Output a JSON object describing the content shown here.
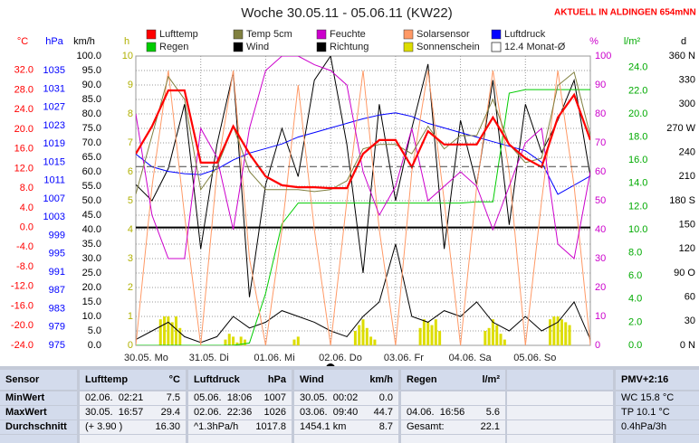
{
  "chart_data": {
    "type": "line",
    "title": "Woche 30.05.11 - 05.06.11 (KW22)",
    "subtitle": "AKTUELL IN ALDINGEN 654mNN",
    "xlim": [
      0,
      7
    ],
    "xticks": [
      {
        "value": 0,
        "label": "30.05. Mo"
      },
      {
        "value": 1,
        "label": "31.05. Di"
      },
      {
        "value": 2,
        "label": "01.06. Mi"
      },
      {
        "value": 3,
        "label": "02.06. Do"
      },
      {
        "value": 4,
        "label": "03.06. Fr"
      },
      {
        "value": 5,
        "label": "04.06. Sa"
      },
      {
        "value": 6,
        "label": "05.06. So"
      }
    ],
    "grid": true,
    "axes": {
      "temp": {
        "label": "°C",
        "color": "#ff0000",
        "lim": [
          -24,
          34.9
        ],
        "ticks": [
          {
            "value": 32,
            "label": "32.0"
          },
          {
            "value": 28,
            "label": "28.0"
          },
          {
            "value": 24,
            "label": "24.0"
          },
          {
            "value": 20,
            "label": "20.0"
          },
          {
            "value": 16,
            "label": "16.0"
          },
          {
            "value": 12,
            "label": "12.0"
          },
          {
            "value": 8,
            "label": "8.0"
          },
          {
            "value": 4,
            "label": "4.0"
          },
          {
            "value": 0,
            "label": "0.0"
          },
          {
            "value": -4,
            "label": "-4.0"
          },
          {
            "value": -8,
            "label": "-8.0"
          },
          {
            "value": -12,
            "label": "-12.0"
          },
          {
            "value": -16,
            "label": "-16.0"
          },
          {
            "value": -20,
            "label": "-20.0"
          },
          {
            "value": -24,
            "label": "-24.0"
          }
        ]
      },
      "pressure": {
        "label": "hPa",
        "color": "#0000ff",
        "lim": [
          975,
          1038.2
        ],
        "ticks": [
          1035,
          1031,
          1027,
          1023,
          1019,
          1015,
          1011,
          1007,
          1003,
          999,
          995,
          991,
          987,
          983,
          979,
          975
        ]
      },
      "wind": {
        "label": "km/h",
        "color": "#000000",
        "lim": [
          0,
          100
        ],
        "ticks": [
          {
            "value": 100,
            "label": "100.0"
          },
          {
            "value": 95,
            "label": "95.0"
          },
          {
            "value": 90,
            "label": "90.0"
          },
          {
            "value": 85,
            "label": "85.0"
          },
          {
            "value": 80,
            "label": "80.0"
          },
          {
            "value": 75,
            "label": "75.0"
          },
          {
            "value": 70,
            "label": "70.0"
          },
          {
            "value": 65,
            "label": "65.0"
          },
          {
            "value": 60,
            "label": "60.0"
          },
          {
            "value": 55,
            "label": "55.0"
          },
          {
            "value": 50,
            "label": "50.0"
          },
          {
            "value": 45,
            "label": "45.0"
          },
          {
            "value": 40,
            "label": "40.0"
          },
          {
            "value": 35,
            "label": "35.0"
          },
          {
            "value": 30,
            "label": "30.0"
          },
          {
            "value": 25,
            "label": "25.0"
          },
          {
            "value": 20,
            "label": "20.0"
          },
          {
            "value": 15,
            "label": "15.0"
          },
          {
            "value": 10,
            "label": "10.0"
          },
          {
            "value": 5,
            "label": "5.0"
          },
          {
            "value": 0,
            "label": "0.0"
          }
        ]
      },
      "sun": {
        "label": "h",
        "color": "#b0b000",
        "lim": [
          0,
          10
        ],
        "ticks": [
          10,
          9,
          8,
          7,
          6,
          5,
          4,
          3,
          2,
          1,
          0
        ]
      },
      "percent": {
        "label": "%",
        "color": "#cc00cc",
        "lim": [
          0,
          100
        ],
        "ticks": [
          100,
          90,
          80,
          70,
          60,
          50,
          40,
          30,
          20,
          10,
          0
        ]
      },
      "rain": {
        "label": "l/m²",
        "color": "#00aa00",
        "lim": [
          0,
          25.0
        ],
        "ticks": [
          {
            "value": 24,
            "label": "24.0"
          },
          {
            "value": 22,
            "label": "22.0"
          },
          {
            "value": 20,
            "label": "20.0"
          },
          {
            "value": 18,
            "label": "18.0"
          },
          {
            "value": 16,
            "label": "16.0"
          },
          {
            "value": 14,
            "label": "14.0"
          },
          {
            "value": 12,
            "label": "12.0"
          },
          {
            "value": 10,
            "label": "10.0"
          },
          {
            "value": 8,
            "label": "8.0"
          },
          {
            "value": 6,
            "label": "6.0"
          },
          {
            "value": 4,
            "label": "4.0"
          },
          {
            "value": 2,
            "label": "2.0"
          },
          {
            "value": 0,
            "label": "0.0"
          }
        ]
      },
      "direction": {
        "label": "d",
        "color": "#000000",
        "lim": [
          0,
          360
        ],
        "ticks": [
          {
            "value": 360,
            "label": "360 N"
          },
          330,
          300,
          {
            "value": 270,
            "label": "270 W"
          },
          240,
          210,
          {
            "value": 180,
            "label": "180 S"
          },
          150,
          120,
          {
            "value": 90,
            "label": "90 O"
          },
          60,
          30,
          {
            "value": 0,
            "label": "0 N"
          }
        ]
      }
    },
    "x": [
      0,
      0.25,
      0.5,
      0.75,
      1,
      1.25,
      1.5,
      1.75,
      2,
      2.25,
      2.5,
      2.75,
      3,
      3.25,
      3.5,
      3.75,
      4,
      4.25,
      4.5,
      4.75,
      5,
      5.25,
      5.5,
      5.75,
      6,
      6.25,
      6.5,
      6.75,
      7
    ],
    "series": [
      {
        "name": "Lufttemp",
        "color": "#ff0000",
        "axis": "temp",
        "values": [
          15.0,
          20.6,
          27.9,
          27.9,
          13.2,
          13.2,
          20.6,
          15.0,
          10.4,
          8.6,
          8.2,
          8.2,
          8.0,
          8.0,
          15.0,
          17.8,
          17.8,
          12.3,
          19.6,
          16.9,
          16.9,
          16.9,
          22.4,
          16.9,
          14.1,
          12.3,
          22.4,
          27.0,
          17.8
        ]
      },
      {
        "name": "Temp 5cm",
        "color": "#808040",
        "axis": "temp",
        "values": [
          6.8,
          18.7,
          30.7,
          26.1,
          7.7,
          12.3,
          20.6,
          11.4,
          7.7,
          7.7,
          7.7,
          7.3,
          7.7,
          9.5,
          16.0,
          16.9,
          16.9,
          15.0,
          20.6,
          16.0,
          18.7,
          18.7,
          26.1,
          16.9,
          13.2,
          14.1,
          28.9,
          31.6,
          18.7
        ]
      },
      {
        "name": "Feuchte",
        "color": "#cc00cc",
        "axis": "percent",
        "values": [
          80,
          45,
          30,
          30,
          75,
          65,
          40,
          75,
          95,
          100,
          100,
          97,
          95,
          90,
          60,
          45,
          55,
          75,
          50,
          55,
          60,
          55,
          40,
          55,
          70,
          75,
          35,
          30,
          60
        ]
      },
      {
        "name": "Solarsensor",
        "color": "#ff9966",
        "axis": "percent",
        "values": [
          0,
          55,
          95,
          45,
          0,
          60,
          95,
          30,
          0,
          40,
          90,
          40,
          0,
          50,
          95,
          40,
          0,
          60,
          95,
          50,
          0,
          55,
          95,
          60,
          0,
          50,
          95,
          55,
          0
        ]
      },
      {
        "name": "Luftdruck",
        "color": "#0000ff",
        "axis": "pressure",
        "values": [
          1016.8,
          1014,
          1013,
          1012.5,
          1012.3,
          1013.5,
          1015.5,
          1017,
          1018,
          1019,
          1020.5,
          1021.5,
          1022.5,
          1023.5,
          1024.5,
          1025.3,
          1025.8,
          1025,
          1023.5,
          1022.5,
          1021.5,
          1020.5,
          1019.5,
          1018.5,
          1017.5,
          1015,
          1008,
          1010,
          1012
        ]
      },
      {
        "name": "Regen",
        "color": "#00cc00",
        "axis": "rain",
        "values": [
          0,
          0,
          0,
          0,
          0,
          0,
          0,
          0.2,
          4.5,
          10.5,
          12.3,
          12.3,
          12.3,
          12.3,
          12.3,
          12.3,
          12.3,
          12.3,
          12.3,
          12.3,
          12.3,
          12.4,
          12.4,
          21.8,
          22.1,
          22.1,
          22.1,
          22.1,
          22.1
        ]
      },
      {
        "name": "Wind",
        "color": "#000000",
        "axis": "wind",
        "values": [
          2,
          5,
          8,
          3,
          1,
          3,
          10,
          6,
          8,
          12,
          10,
          8,
          5,
          3,
          10,
          15,
          35,
          10,
          8,
          12,
          10,
          15,
          8,
          5,
          10,
          5,
          8,
          15,
          2
        ]
      },
      {
        "name": "Richtung",
        "color": "#000000",
        "axis": "direction",
        "values": [
          200,
          180,
          220,
          300,
          120,
          250,
          340,
          60,
          200,
          270,
          210,
          330,
          360,
          250,
          90,
          300,
          180,
          270,
          350,
          120,
          280,
          200,
          330,
          150,
          300,
          240,
          280,
          330,
          210
        ]
      },
      {
        "name": "Sonnenschein",
        "color": "#dddd00",
        "axis": "sun",
        "type": "bar",
        "x": [
          0.38,
          0.44,
          0.5,
          0.56,
          0.62,
          0.68,
          1.38,
          1.44,
          1.5,
          1.56,
          1.62,
          1.68,
          2.38,
          2.44,
          2.5,
          2.56,
          2.62,
          2.68,
          3.38,
          3.44,
          3.5,
          3.56,
          3.62,
          3.68,
          4.38,
          4.44,
          4.5,
          4.56,
          4.62,
          4.68,
          5.38,
          5.44,
          5.5,
          5.56,
          5.62,
          5.68,
          6.38,
          6.44,
          6.5,
          6.56,
          6.62,
          6.68
        ],
        "values": [
          0.9,
          1.0,
          1.0,
          0.8,
          1.0,
          0.6,
          0.2,
          0.4,
          0.3,
          0.1,
          0.3,
          0.2,
          0,
          0.2,
          0.3,
          0,
          0,
          0,
          0.5,
          0.7,
          0.9,
          0.6,
          0.3,
          0.2,
          0.6,
          0.9,
          0.8,
          0.7,
          0.9,
          0.5,
          0.5,
          0.6,
          0.9,
          0.7,
          0.4,
          0.2,
          0.9,
          1.0,
          1.0,
          0.9,
          0.8,
          0.7
        ]
      }
    ],
    "monthly_mean": {
      "label": "12.4 Monat-Ø",
      "value": 12.4,
      "axis": "temp"
    }
  },
  "stats": {
    "panels": [
      {
        "header": [
          "Sensor"
        ],
        "rows": [
          [
            "MinWert"
          ],
          [
            "MaxWert"
          ],
          [
            "Durchschnitt"
          ]
        ]
      },
      {
        "header": [
          "Lufttemp",
          "°C"
        ],
        "rows": [
          [
            "02.06.  02:21",
            "7.5"
          ],
          [
            "30.05.  16:57",
            "29.4"
          ],
          [
            "(+ 3.90 )",
            "16.30"
          ]
        ]
      },
      {
        "header": [
          "Luftdruck",
          "hPa"
        ],
        "rows": [
          [
            "05.06.  18:06",
            "1007"
          ],
          [
            "02.06.  22:36",
            "1026"
          ],
          [
            "^1.3hPa/h",
            "1017.8"
          ]
        ]
      },
      {
        "header": [
          "Wind",
          "km/h"
        ],
        "rows": [
          [
            "30.05.  00:02",
            "0.0"
          ],
          [
            "03.06.  09:40",
            "44.7"
          ],
          [
            "1454.1 km",
            "8.7"
          ]
        ]
      },
      {
        "header": [
          "Regen",
          "l/m²"
        ],
        "rows": [
          [],
          [
            "04.06.  16:56",
            "5.6"
          ],
          [
            "Gesamt:",
            "22.1"
          ]
        ]
      },
      {
        "header": [],
        "rows": []
      },
      {
        "header": [
          "PMV+2:16"
        ],
        "rows": [
          [
            "WC 15.8 °C"
          ],
          [
            "TP 10.1 °C"
          ],
          [
            "0.4hPa/3h"
          ]
        ]
      }
    ]
  }
}
